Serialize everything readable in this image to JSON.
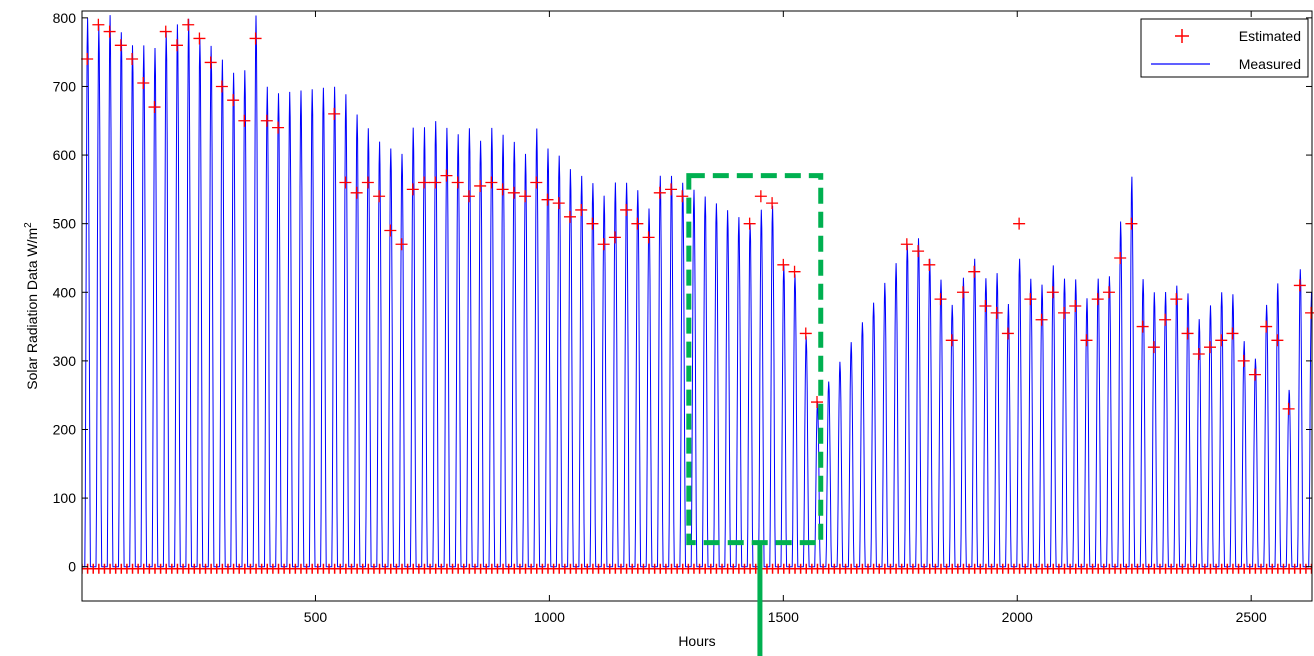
{
  "chart_data": {
    "type": "line",
    "xlabel": "Hours",
    "ylabel": "Solar Radiation Data W/m",
    "ylabel_sup": "2",
    "xlim": [
      1,
      2630
    ],
    "ylim": [
      -50,
      810
    ],
    "xticks": [
      500,
      1000,
      1500,
      2000,
      2500
    ],
    "yticks": [
      0,
      100,
      200,
      300,
      400,
      500,
      600,
      700,
      800
    ],
    "grid": false,
    "legend_position": "top-right",
    "series": [
      {
        "name": "Estimated",
        "style": "markers",
        "marker": "+",
        "color": "#ff0000",
        "daily_peaks_sampled": {
          "x": [
            12,
            36,
            60,
            84,
            108,
            132,
            156,
            180,
            204,
            228,
            252,
            276,
            300,
            324,
            348,
            372,
            396,
            420,
            540,
            564,
            588,
            612,
            636,
            660,
            684,
            708,
            732,
            756,
            780,
            804,
            828,
            852,
            876,
            900,
            924,
            948,
            972,
            996,
            1020,
            1044,
            1068,
            1092,
            1116,
            1140,
            1164,
            1188,
            1212,
            1236,
            1260,
            1284,
            1428,
            1452,
            1476,
            1500,
            1524,
            1548,
            1572,
            1764,
            1788,
            1812,
            1836,
            1860,
            1884,
            1908,
            1932,
            1956,
            1980,
            2004,
            2028,
            2052,
            2076,
            2100,
            2124,
            2148,
            2172,
            2196,
            2220,
            2244,
            2268,
            2292,
            2316,
            2340,
            2364,
            2388,
            2412,
            2436,
            2460,
            2484,
            2508,
            2532,
            2556,
            2580,
            2604,
            2628
          ],
          "y": [
            740,
            790,
            780,
            760,
            740,
            705,
            670,
            780,
            760,
            790,
            770,
            735,
            700,
            680,
            650,
            770,
            650,
            640,
            660,
            560,
            545,
            560,
            540,
            490,
            470,
            550,
            560,
            560,
            570,
            560,
            540,
            555,
            560,
            550,
            545,
            540,
            560,
            535,
            530,
            510,
            520,
            500,
            470,
            480,
            520,
            500,
            480,
            545,
            550,
            540,
            500,
            540,
            530,
            440,
            430,
            340,
            240,
            470,
            460,
            440,
            390,
            330,
            400,
            430,
            380,
            370,
            340,
            500,
            390,
            360,
            400,
            370,
            380,
            330,
            390,
            400,
            450,
            500,
            350,
            320,
            360,
            390,
            340,
            310,
            320,
            330,
            340,
            300,
            280,
            350,
            330,
            230,
            410,
            370
          ]
        }
      },
      {
        "name": "Measured",
        "style": "line",
        "color": "#0000ff",
        "daily_peaks_sampled": {
          "x": [
            12,
            36,
            60,
            84,
            108,
            132,
            156,
            180,
            204,
            228,
            252,
            276,
            300,
            324,
            348,
            372,
            396,
            420,
            540,
            564,
            588,
            612,
            636,
            660,
            684,
            708,
            732,
            756,
            780,
            804,
            828,
            852,
            876,
            900,
            924,
            948,
            972,
            996,
            1020,
            1044,
            1068,
            1092,
            1116,
            1140,
            1164,
            1188,
            1212,
            1236,
            1260,
            1284,
            1428,
            1452,
            1476,
            1500,
            1524,
            1548,
            1572,
            1764,
            1788,
            1812,
            1836,
            1860,
            1884,
            1908,
            1932,
            1956,
            1980,
            2004,
            2028,
            2052,
            2076,
            2100,
            2124,
            2148,
            2172,
            2196,
            2220,
            2244,
            2268,
            2292,
            2316,
            2340,
            2364,
            2388,
            2412,
            2436,
            2460,
            2484,
            2508,
            2532,
            2556,
            2580,
            2604,
            2628
          ],
          "y": [
            800,
            790,
            805,
            780,
            760,
            760,
            755,
            780,
            790,
            800,
            770,
            760,
            740,
            720,
            720,
            808,
            700,
            690,
            700,
            690,
            660,
            640,
            620,
            610,
            600,
            640,
            640,
            650,
            640,
            630,
            640,
            620,
            640,
            630,
            620,
            600,
            640,
            610,
            600,
            580,
            570,
            560,
            540,
            560,
            560,
            550,
            520,
            570,
            570,
            560,
            500,
            520,
            530,
            440,
            430,
            340,
            240,
            470,
            480,
            450,
            420,
            380,
            420,
            450,
            420,
            430,
            380,
            450,
            420,
            410,
            440,
            420,
            420,
            390,
            420,
            420,
            500,
            575,
            420,
            400,
            400,
            410,
            400,
            360,
            380,
            400,
            400,
            330,
            300,
            380,
            420,
            250,
            435,
            400
          ]
        }
      }
    ],
    "annotation": {
      "type": "dashed-rectangle",
      "color": "#00b050",
      "x_range": [
        1298,
        1580
      ],
      "y_range": [
        35,
        570
      ],
      "pointer_x": 1450
    }
  }
}
